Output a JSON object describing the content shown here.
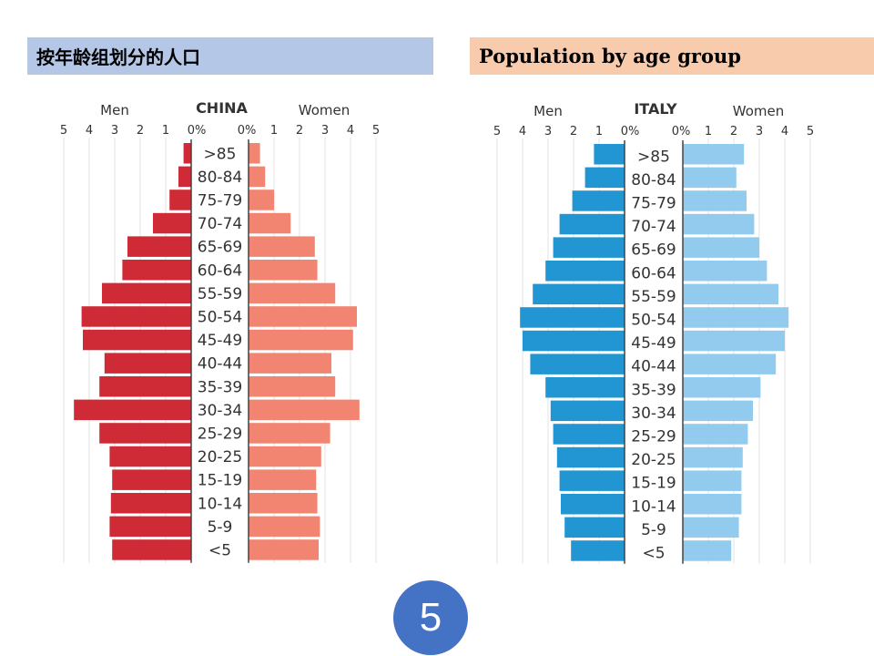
{
  "headers": {
    "chinese_title": "按年龄组划分的人口",
    "english_title": "Population by age group"
  },
  "page_number": "5",
  "chart_data": [
    {
      "type": "bar",
      "title": "CHINA",
      "left_label": "Men",
      "right_label": "Women",
      "xlim": [
        0,
        5
      ],
      "ticks_left": [
        "5",
        "4",
        "3",
        "2",
        "1",
        "0%"
      ],
      "ticks_right": [
        "0%",
        "1",
        "2",
        "3",
        "4",
        "5"
      ],
      "categories": [
        ">85",
        "80-84",
        "75-79",
        "70-74",
        "65-69",
        "60-64",
        "55-59",
        "50-54",
        "45-49",
        "40-44",
        "35-39",
        "30-34",
        "25-29",
        "20-25",
        "15-19",
        "10-14",
        "5-9",
        "<5"
      ],
      "series": [
        {
          "name": "Men",
          "color": "#cf2b37",
          "values": [
            0.3,
            0.5,
            0.85,
            1.5,
            2.5,
            2.7,
            3.5,
            4.3,
            4.25,
            3.4,
            3.6,
            4.6,
            3.6,
            3.2,
            3.1,
            3.15,
            3.2,
            3.1
          ]
        },
        {
          "name": "Women",
          "color": "#f28472",
          "values": [
            0.45,
            0.65,
            1.0,
            1.65,
            2.6,
            2.7,
            3.4,
            4.25,
            4.1,
            3.25,
            3.4,
            4.35,
            3.2,
            2.85,
            2.65,
            2.7,
            2.8,
            2.75
          ]
        }
      ]
    },
    {
      "type": "bar",
      "title": "ITALY",
      "left_label": "Men",
      "right_label": "Women",
      "xlim": [
        0,
        5
      ],
      "ticks_left": [
        "5",
        "4",
        "3",
        "2",
        "1",
        "0%"
      ],
      "ticks_right": [
        "0%",
        "1",
        "2",
        "3",
        "4",
        "5"
      ],
      "categories": [
        ">85",
        "80-84",
        "75-79",
        "70-74",
        "65-69",
        "60-64",
        "55-59",
        "50-54",
        "45-49",
        "40-44",
        "35-39",
        "30-34",
        "25-29",
        "20-25",
        "15-19",
        "10-14",
        "5-9",
        "<5"
      ],
      "series": [
        {
          "name": "Men",
          "color": "#2196d3",
          "values": [
            1.2,
            1.55,
            2.05,
            2.55,
            2.8,
            3.1,
            3.6,
            4.1,
            4.0,
            3.7,
            3.1,
            2.9,
            2.8,
            2.65,
            2.55,
            2.5,
            2.35,
            2.1
          ]
        },
        {
          "name": "Women",
          "color": "#93cbee",
          "values": [
            2.4,
            2.1,
            2.5,
            2.8,
            3.0,
            3.3,
            3.75,
            4.15,
            4.0,
            3.65,
            3.05,
            2.75,
            2.55,
            2.35,
            2.3,
            2.3,
            2.2,
            1.9
          ]
        }
      ]
    }
  ]
}
